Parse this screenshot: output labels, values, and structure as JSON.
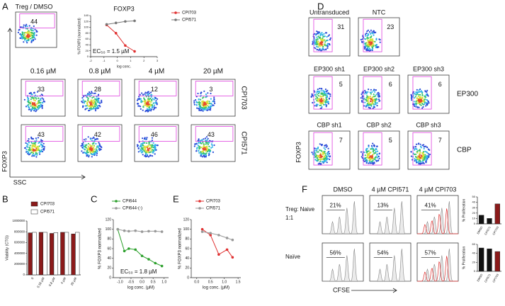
{
  "panel_a": {
    "letter": "A",
    "dmso_title": "Treg / DMSO",
    "dmso_gate": 44,
    "concentrations": [
      "0.16 µM",
      "0.8 µM",
      "4 µM",
      "20 µM"
    ],
    "rows": [
      {
        "label": "CPI703",
        "color": "#e03030",
        "gates": [
          33,
          28,
          12,
          3
        ]
      },
      {
        "label": "CPI571",
        "color": "#777777",
        "gates": [
          43,
          42,
          46,
          43
        ]
      }
    ],
    "y_axis": "FOXP3",
    "x_axis": "SSC",
    "chart": {
      "type": "line",
      "title": "FOXP3",
      "y_label": "% FOXP3 (normalized)",
      "x_label": "log conc.",
      "annotation": "EC₅₀ = 1.5 µM",
      "x": [
        -0.8,
        -0.1,
        0.6,
        1.3
      ],
      "series": [
        {
          "name": "CPI703",
          "color": "#e03030",
          "values": [
            108,
            80,
            38,
            18
          ]
        },
        {
          "name": "CPI571",
          "color": "#777777",
          "values": [
            110,
            115,
            120,
            122
          ]
        }
      ],
      "xlim": [
        -2,
        3
      ],
      "xticks": [
        -2,
        -1,
        0,
        1,
        2,
        3
      ],
      "ylim": [
        0,
        140
      ],
      "yticks": [
        0,
        20,
        40,
        60,
        80,
        100,
        120,
        140
      ]
    }
  },
  "panel_b": {
    "letter": "B",
    "chart": {
      "type": "bar",
      "y_label": "Viability (CTG)",
      "categories": [
        "0",
        "0.16 µM",
        "0.8 µM",
        "4 µM",
        "20 µM"
      ],
      "series": [
        {
          "name": "CPI703",
          "color": "#8b1a1a",
          "values": [
            780000,
            790000,
            770000,
            790000,
            760000
          ]
        },
        {
          "name": "CPI571",
          "color": "#ffffff",
          "values": [
            790000,
            790000,
            785000,
            790000,
            790000
          ]
        }
      ],
      "ylim": [
        0,
        1000000
      ],
      "yticks": [
        0,
        200000,
        400000,
        600000,
        800000,
        1000000
      ]
    }
  },
  "panel_c": {
    "letter": "C",
    "chart": {
      "type": "line",
      "y_label": "% FOXP3 normalized",
      "x_label": "log conc. (µM)",
      "annotation": "EC₅₀ = 1.8 µM",
      "x": [
        -1.1,
        -0.8,
        -0.6,
        -0.3,
        0,
        0.3,
        0.6,
        0.9
      ],
      "series": [
        {
          "name": "CPI644",
          "color": "#2ca02c",
          "values": [
            100,
            55,
            60,
            58,
            45,
            38,
            30,
            24
          ]
        },
        {
          "name": "CPI644-(-)",
          "color": "#999999",
          "values": [
            100,
            97,
            96,
            97,
            95,
            96,
            96,
            95
          ]
        }
      ],
      "xlim": [
        -1.3,
        1.2
      ],
      "xticks": [
        {
          "value": -1,
          "label": "-1.0"
        },
        -0.5,
        {
          "value": 0,
          "label": "0.0"
        },
        0.5,
        {
          "value": 1,
          "label": "1.0"
        }
      ],
      "ylim": [
        0,
        120
      ],
      "yticks": [
        0,
        20,
        40,
        60,
        80,
        100,
        120
      ]
    }
  },
  "panel_e": {
    "letter": "E",
    "chart": {
      "type": "line",
      "y_label": "% FOXP3 normalized",
      "x_label": "log conc. (µM)",
      "x": [
        0.2,
        0.5,
        0.8,
        1.1,
        1.3
      ],
      "series": [
        {
          "name": "CPI703",
          "color": "#e03030",
          "values": [
            100,
            88,
            48,
            58,
            42
          ]
        },
        {
          "name": "CPI571",
          "color": "#999999",
          "values": [
            95,
            92,
            88,
            82,
            78
          ]
        }
      ],
      "xlim": [
        -0.2,
        1.6
      ],
      "xticks": [
        {
          "value": 0,
          "label": "0.0"
        },
        0.5,
        {
          "value": 1,
          "label": "1.0"
        },
        1.5
      ],
      "ylim": [
        0,
        120
      ],
      "yticks": [
        0,
        20,
        40,
        60,
        80,
        100,
        120
      ]
    }
  },
  "panel_d": {
    "letter": "D",
    "y_axis": "FOXP3",
    "top": [
      {
        "label": "Untransduced",
        "gate": 31
      },
      {
        "label": "NTC",
        "gate": 23
      }
    ],
    "groups": [
      {
        "label": "EP300",
        "plots": [
          {
            "label": "EP300 sh1",
            "gate": 5
          },
          {
            "label": "EP300 sh2",
            "gate": 6
          },
          {
            "label": "EP300 sh3",
            "gate": 6
          }
        ]
      },
      {
        "label": "CBP",
        "plots": [
          {
            "label": "CBP sh1",
            "gate": 7
          },
          {
            "label": "CBP sh2",
            "gate": 5
          },
          {
            "label": "CBP sh3",
            "gate": 7
          }
        ]
      }
    ]
  },
  "panel_f": {
    "letter": "F",
    "columns": [
      "DMSO",
      "4 µM CPI571",
      "4 µM CPI703"
    ],
    "x_axis": "CFSE",
    "rows": [
      {
        "label_lines": [
          "Treg: Naive",
          "1:1"
        ],
        "gates": [
          "21%",
          "13%",
          "41%"
        ],
        "chart": {
          "type": "bar",
          "y_label": "% Proliferation",
          "categories": [
            "DMSO",
            "CPI571",
            "CPI703"
          ],
          "values": [
            16,
            10,
            37
          ],
          "colors": [
            "#111111",
            "#111111",
            "#8b1a1a"
          ],
          "ylim": [
            0,
            50
          ],
          "yticks": [
            0,
            10,
            20,
            30,
            40,
            50
          ]
        }
      },
      {
        "label_lines": [
          "Naïve"
        ],
        "gates": [
          "56%",
          "54%",
          "57%"
        ],
        "chart": {
          "type": "bar",
          "y_label": "% Proliferation",
          "categories": [
            "DMSO",
            "CPI571",
            "CPI703"
          ],
          "values": [
            52,
            50,
            44
          ],
          "colors": [
            "#111111",
            "#111111",
            "#8b1a1a"
          ],
          "ylim": [
            0,
            60
          ],
          "yticks": [
            0,
            20,
            40,
            60
          ]
        }
      }
    ]
  }
}
